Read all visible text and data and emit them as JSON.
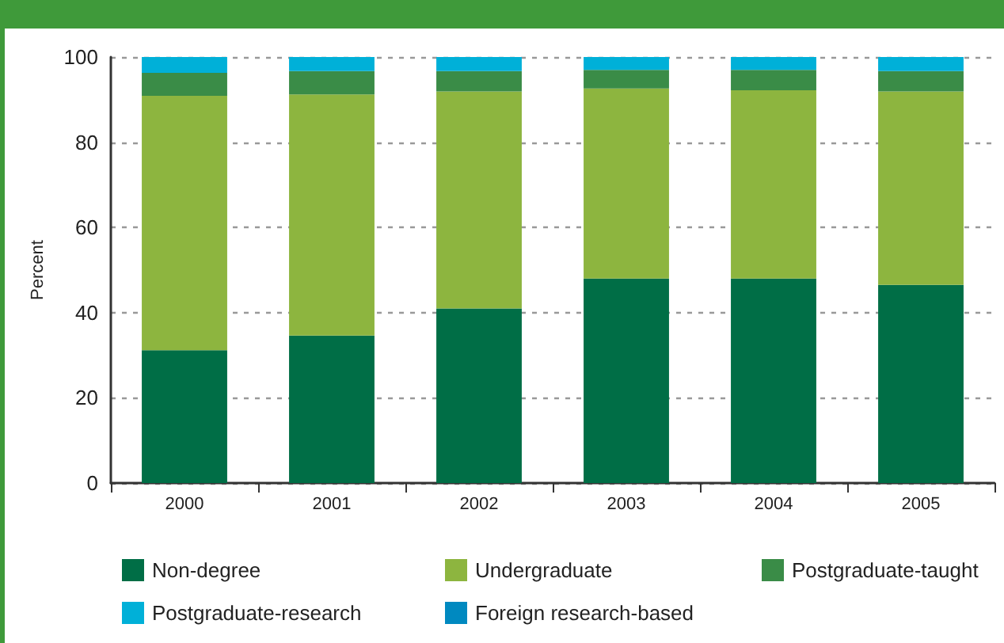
{
  "chart_data": {
    "type": "bar",
    "stacked": true,
    "ylabel": "Percent",
    "categories": [
      "2000",
      "2001",
      "2002",
      "2003",
      "2004",
      "2005"
    ],
    "series": [
      {
        "name": "Non-degree",
        "color": "#006e46",
        "values": [
          31.2,
          34.6,
          41.0,
          48.0,
          48.0,
          46.5
        ]
      },
      {
        "name": "Undergraduate",
        "color": "#8db53f",
        "values": [
          59.7,
          56.6,
          50.9,
          44.6,
          44.2,
          45.4
        ]
      },
      {
        "name": "Postgraduate-taught",
        "color": "#3a8c47",
        "values": [
          5.4,
          5.5,
          4.8,
          4.4,
          4.8,
          4.8
        ]
      },
      {
        "name": "Postgraduate-research",
        "color": "#00b0d8",
        "values": [
          3.7,
          3.3,
          3.3,
          3.0,
          3.0,
          3.3
        ]
      },
      {
        "name": "Foreign research-based",
        "color": "#0089c0",
        "values": [
          0,
          0,
          0,
          0,
          0,
          0
        ]
      }
    ],
    "ylim": [
      0,
      100
    ],
    "yticks": [
      0,
      20,
      40,
      60,
      80,
      100
    ],
    "grid": "y",
    "legend": "bottom"
  }
}
